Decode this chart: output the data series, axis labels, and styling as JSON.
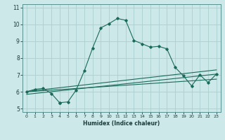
{
  "xlabel": "Humidex (Indice chaleur)",
  "background_color": "#cce8e8",
  "grid_color": "#aad0d0",
  "line_color": "#1a6a5a",
  "xlim": [
    -0.5,
    23.5
  ],
  "ylim": [
    4.8,
    11.2
  ],
  "xticks": [
    0,
    1,
    2,
    3,
    4,
    5,
    6,
    7,
    8,
    9,
    10,
    11,
    12,
    13,
    14,
    15,
    16,
    17,
    18,
    19,
    20,
    21,
    22,
    23
  ],
  "yticks": [
    5,
    6,
    7,
    8,
    9,
    10,
    11
  ],
  "series1_x": [
    0,
    1,
    2,
    3,
    4,
    4,
    5,
    6,
    7,
    8,
    9,
    10,
    11,
    12,
    13,
    14,
    15,
    16,
    17,
    18,
    19,
    20,
    21,
    22,
    23
  ],
  "series1_y": [
    6.0,
    6.15,
    6.2,
    5.9,
    5.35,
    5.35,
    5.4,
    6.1,
    7.25,
    8.6,
    9.8,
    10.05,
    10.35,
    10.25,
    9.05,
    8.85,
    8.65,
    8.7,
    8.55,
    7.45,
    6.95,
    6.35,
    7.0,
    6.55,
    7.05
  ],
  "series2_x": [
    0,
    23
  ],
  "series2_y": [
    6.02,
    7.3
  ],
  "series3_x": [
    0,
    23
  ],
  "series3_y": [
    5.85,
    7.05
  ],
  "series4_x": [
    0,
    23
  ],
  "series4_y": [
    6.0,
    6.75
  ]
}
